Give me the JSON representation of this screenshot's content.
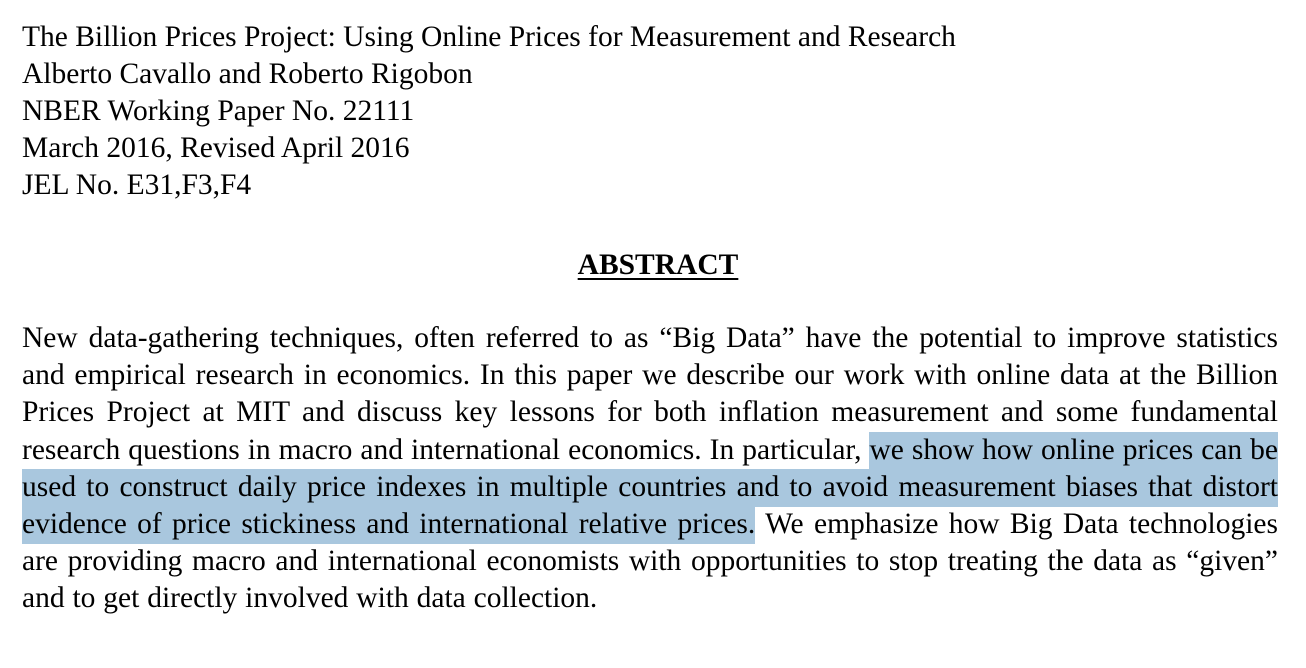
{
  "paper": {
    "title": "The Billion Prices Project: Using Online Prices for Measurement and Research",
    "authors": "Alberto Cavallo and Roberto Rigobon",
    "series": "NBER Working Paper No. 22111",
    "date": "March 2016, Revised April 2016",
    "jel": "JEL No. E31,F3,F4"
  },
  "abstract": {
    "heading": "ABSTRACT",
    "text_before_highlight": "New data-gathering techniques, often referred to as “Big Data” have the potential to improve statistics and empirical research in economics. In this paper we describe our work with online data at the Billion Prices Project at MIT and discuss key lessons for both inflation measurement and some fundamental research questions in macro and international economics. In particular, ",
    "highlighted_text": "we show how online prices can be used to construct daily price indexes in multiple countries and to avoid measurement biases that distort evidence of price stickiness and international relative prices.",
    "text_after_highlight": " We emphasize how Big Data technologies are providing macro and international economists with opportunities to stop treating the data as “given” and to get directly involved with data collection."
  },
  "colors": {
    "selection_highlight": "#a9c7de",
    "text": "#000000",
    "background": "#ffffff"
  }
}
